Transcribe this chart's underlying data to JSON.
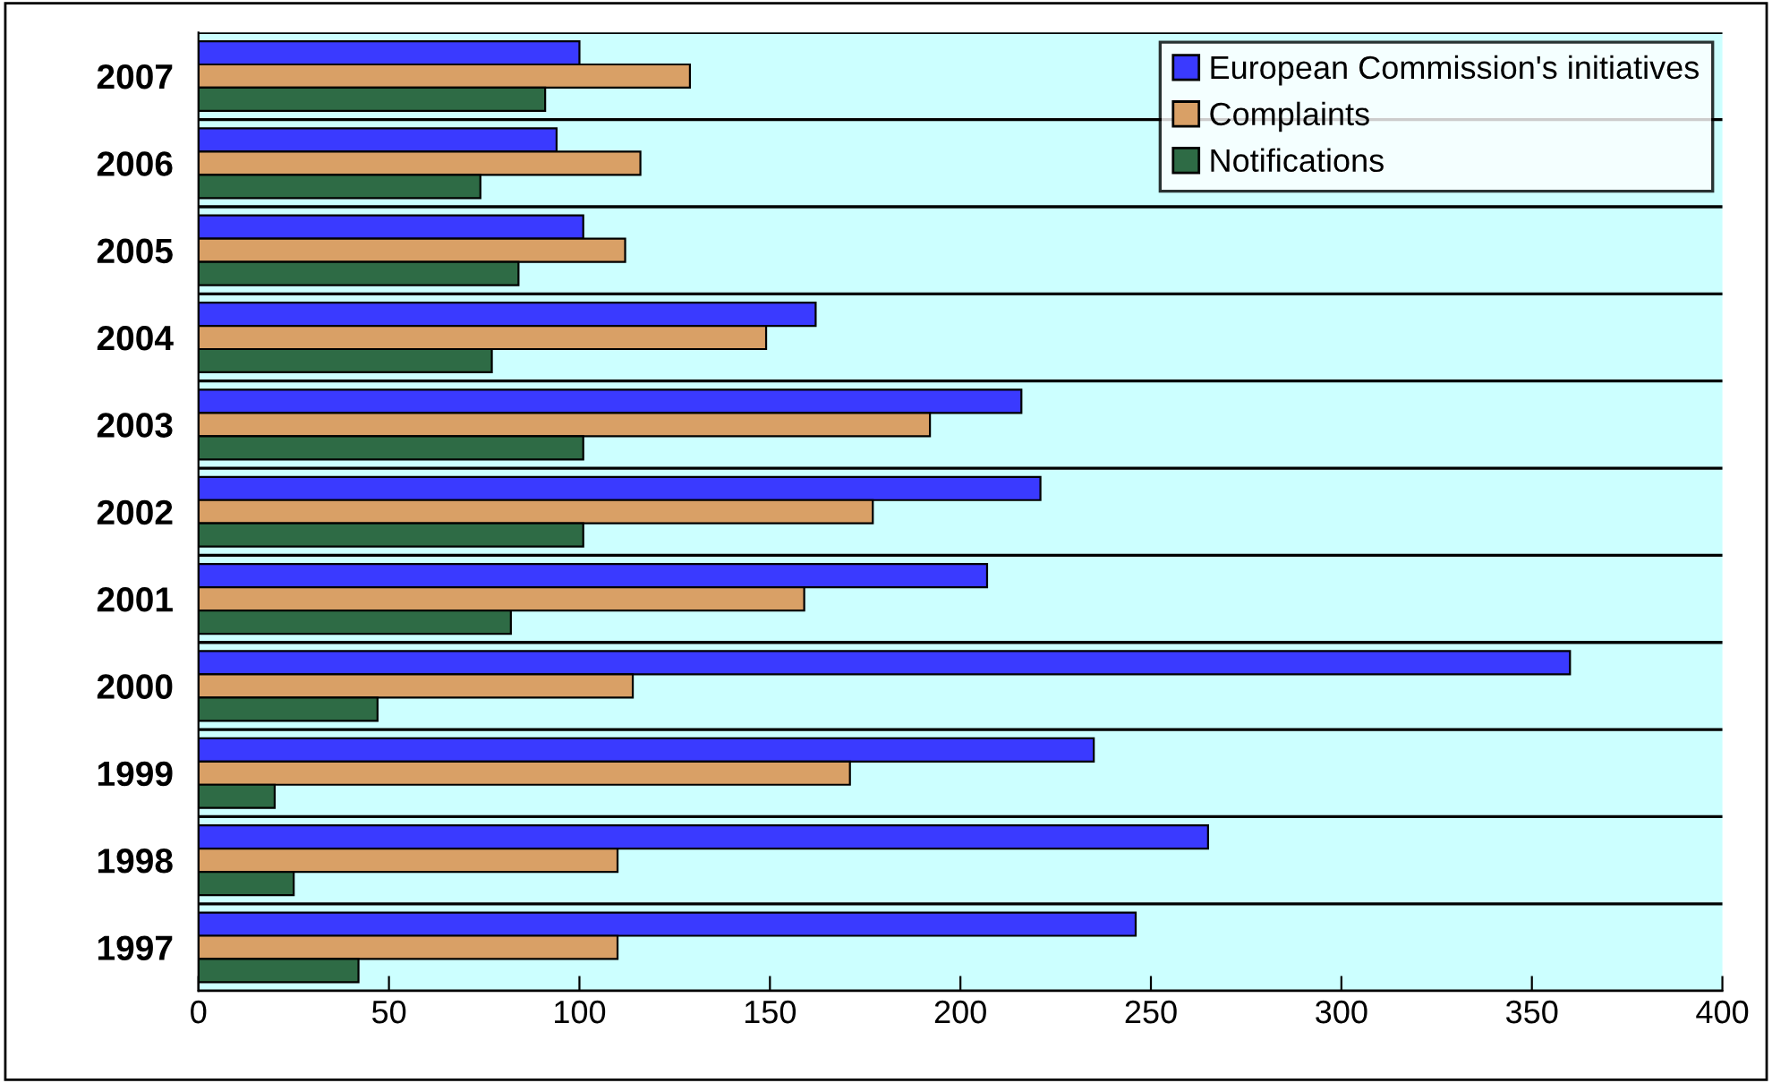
{
  "chart_data": {
    "type": "bar",
    "orientation": "horizontal",
    "categories": [
      "2007",
      "2006",
      "2005",
      "2004",
      "2003",
      "2002",
      "2001",
      "2000",
      "1999",
      "1998",
      "1997"
    ],
    "series": [
      {
        "name": "European Commission's initiatives",
        "color": "#3a3aff",
        "values": [
          100,
          94,
          101,
          162,
          216,
          221,
          207,
          360,
          235,
          265,
          246
        ]
      },
      {
        "name": "Complaints",
        "color": "#d9a066",
        "values": [
          129,
          116,
          112,
          149,
          192,
          177,
          159,
          114,
          171,
          110,
          110
        ]
      },
      {
        "name": "Notifications",
        "color": "#2e6b45",
        "values": [
          91,
          74,
          84,
          77,
          101,
          101,
          82,
          47,
          20,
          25,
          42
        ]
      }
    ],
    "xlim": [
      0,
      400
    ],
    "xticks": [
      0,
      50,
      100,
      150,
      200,
      250,
      300,
      350,
      400
    ],
    "grid": "y",
    "legend": "top right"
  }
}
